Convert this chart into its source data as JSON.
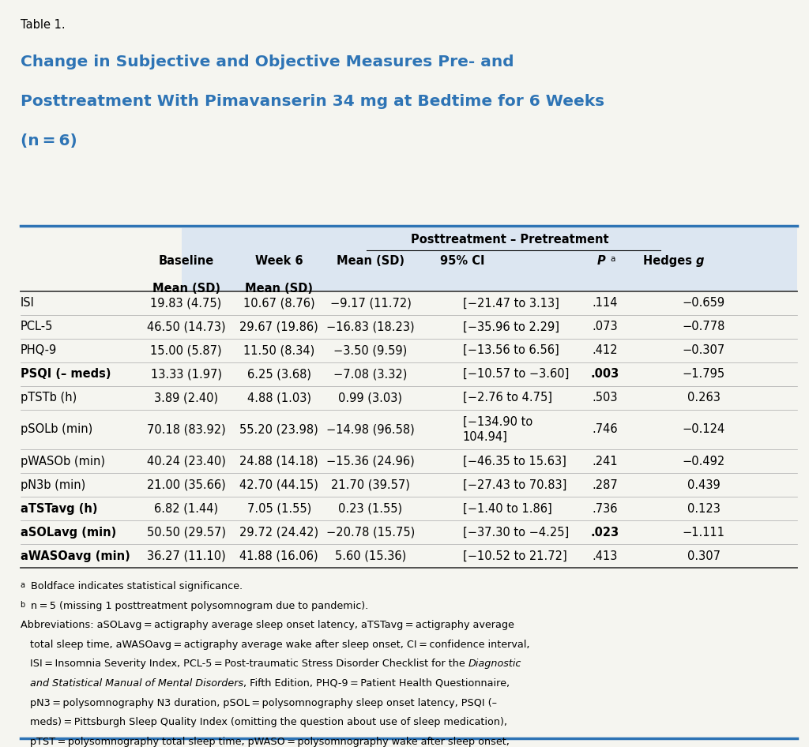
{
  "table_label": "Table 1.",
  "title_line1": "Change in Subjective and Objective Measures Pre- and",
  "title_line2": "Posttreatment With Pimavanserin 34 mg at Bedtime for 6 Weeks",
  "title_line3": "(n = 6)",
  "superheader": "Posttreatment – Pretreatment",
  "rows": [
    {
      "label": "ISI",
      "bold": false,
      "baseline": "19.83 (4.75)",
      "week6": "10.67 (8.76)",
      "mean_sd": "−9.17 (11.72)",
      "ci": "[−21.47 to 3.13]",
      "ci2": "",
      "p": ".114",
      "p_bold": false,
      "hedges": "−0.659"
    },
    {
      "label": "PCL-5",
      "bold": false,
      "baseline": "46.50 (14.73)",
      "week6": "29.67 (19.86)",
      "mean_sd": "−16.83 (18.23)",
      "ci": "[−35.96 to 2.29]",
      "ci2": "",
      "p": ".073",
      "p_bold": false,
      "hedges": "−0.778"
    },
    {
      "label": "PHQ-9",
      "bold": false,
      "baseline": "15.00 (5.87)",
      "week6": "11.50 (8.34)",
      "mean_sd": "−3.50 (9.59)",
      "ci": "[−13.56 to 6.56]",
      "ci2": "",
      "p": ".412",
      "p_bold": false,
      "hedges": "−0.307"
    },
    {
      "label": "PSQI (– meds)",
      "bold": true,
      "baseline": "13.33 (1.97)",
      "week6": "6.25 (3.68)",
      "mean_sd": "−7.08 (3.32)",
      "ci": "[−10.57 to −3.60]",
      "ci2": "",
      "p": ".003",
      "p_bold": true,
      "hedges": "−1.795"
    },
    {
      "label": "pTSTb (h)",
      "bold": false,
      "baseline": "3.89 (2.40)",
      "week6": "4.88 (1.03)",
      "mean_sd": "0.99 (3.03)",
      "ci": "[−2.76 to 4.75]",
      "ci2": "",
      "p": ".503",
      "p_bold": false,
      "hedges": "0.263"
    },
    {
      "label": "pSOLb (min)",
      "bold": false,
      "baseline": "70.18 (83.92)",
      "week6": "55.20 (23.98)",
      "mean_sd": "−14.98 (96.58)",
      "ci": "[−134.90 to",
      "ci2": "104.94]",
      "p": ".746",
      "p_bold": false,
      "hedges": "−0.124"
    },
    {
      "label": "pWASOb (min)",
      "bold": false,
      "baseline": "40.24 (23.40)",
      "week6": "24.88 (14.18)",
      "mean_sd": "−15.36 (24.96)",
      "ci": "[−46.35 to 15.63]",
      "ci2": "",
      "p": ".241",
      "p_bold": false,
      "hedges": "−0.492"
    },
    {
      "label": "pN3b (min)",
      "bold": false,
      "baseline": "21.00 (35.66)",
      "week6": "42.70 (44.15)",
      "mean_sd": "21.70 (39.57)",
      "ci": "[−27.43 to 70.83]",
      "ci2": "",
      "p": ".287",
      "p_bold": false,
      "hedges": "0.439"
    },
    {
      "label": "aTSTavg (h)",
      "bold": true,
      "baseline": "6.82 (1.44)",
      "week6": "7.05 (1.55)",
      "mean_sd": "0.23 (1.55)",
      "ci": "[−1.40 to 1.86]",
      "ci2": "",
      "p": ".736",
      "p_bold": false,
      "hedges": "0.123"
    },
    {
      "label": "aSOLavg (min)",
      "bold": true,
      "baseline": "50.50 (29.57)",
      "week6": "29.72 (24.42)",
      "mean_sd": "−20.78 (15.75)",
      "ci": "[−37.30 to −4.25]",
      "ci2": "",
      "p": ".023",
      "p_bold": true,
      "hedges": "−1.111"
    },
    {
      "label": "aWASOavg (min)",
      "bold": true,
      "baseline": "36.27 (11.10)",
      "week6": "41.88 (16.06)",
      "mean_sd": "5.60 (15.36)",
      "ci": "[−10.52 to 21.72]",
      "ci2": "",
      "p": ".413",
      "p_bold": false,
      "hedges": "0.307"
    }
  ],
  "header_bg_color": "#dce6f1",
  "title_color": "#2e74b5",
  "table_label_color": "#000000",
  "text_color": "#000000",
  "bg_color": "#f5f5f0",
  "thick_line_color": "#2e74b5",
  "mid_line_color": "#444444"
}
